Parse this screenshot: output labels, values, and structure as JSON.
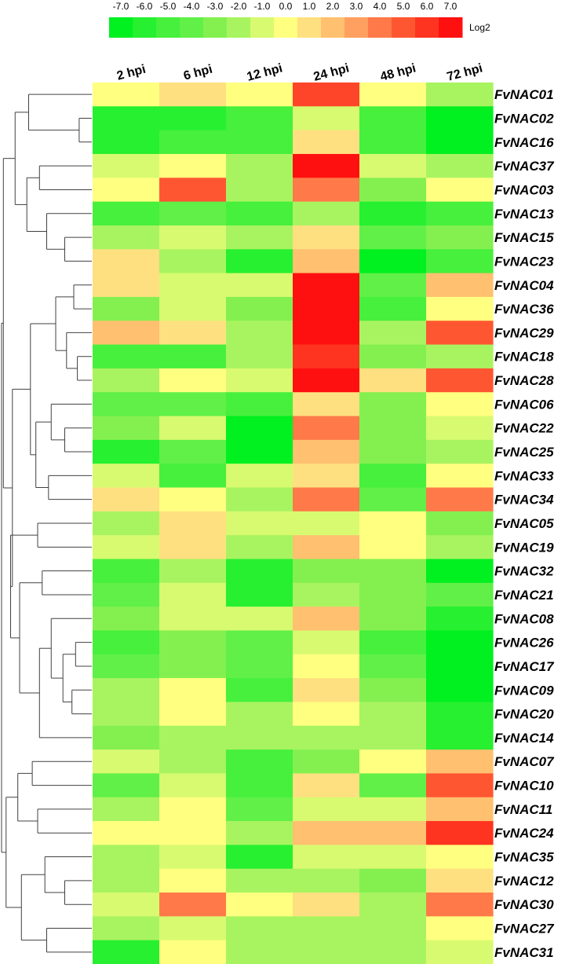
{
  "chart_data": {
    "type": "heatmap",
    "title": "",
    "xlabel": "",
    "ylabel": "",
    "columns": [
      "2 hpi",
      "6 hpi",
      "12 hpi",
      "24 hpi",
      "48 hpi",
      "72 hpi"
    ],
    "rows": [
      "FvNAC01",
      "FvNAC02",
      "FvNAC16",
      "FvNAC37",
      "FvNAC03",
      "FvNAC13",
      "FvNAC15",
      "FvNAC23",
      "FvNAC04",
      "FvNAC36",
      "FvNAC29",
      "FvNAC18",
      "FvNAC28",
      "FvNAC06",
      "FvNAC22",
      "FvNAC25",
      "FvNAC33",
      "FvNAC34",
      "FvNAC05",
      "FvNAC19",
      "FvNAC32",
      "FvNAC21",
      "FvNAC08",
      "FvNAC26",
      "FvNAC17",
      "FvNAC09",
      "FvNAC20",
      "FvNAC14",
      "FvNAC07",
      "FvNAC10",
      "FvNAC11",
      "FvNAC24",
      "FvNAC35",
      "FvNAC12",
      "FvNAC30",
      "FvNAC27",
      "FvNAC31"
    ],
    "values": [
      [
        0,
        1,
        0,
        5.5,
        0,
        -2
      ],
      [
        -6,
        -6,
        -5,
        -1,
        -5,
        -7
      ],
      [
        -6,
        -5,
        -5,
        1,
        -5,
        -7
      ],
      [
        -1,
        0,
        -2,
        7,
        -1,
        -2
      ],
      [
        0,
        5,
        -2,
        4,
        -3,
        0
      ],
      [
        -5,
        -4,
        -5,
        -2,
        -6,
        -5
      ],
      [
        -2,
        -1,
        -2,
        1,
        -4,
        -3
      ],
      [
        1,
        -2,
        -6,
        2,
        -7,
        -5
      ],
      [
        1,
        -1,
        -1,
        7,
        -4,
        2
      ],
      [
        -3,
        -1,
        -3,
        7,
        -5,
        0
      ],
      [
        2,
        1,
        -2,
        7,
        -2,
        5
      ],
      [
        -5,
        -5,
        -2,
        6,
        -3,
        -2
      ],
      [
        -2,
        0,
        -1,
        7,
        1,
        5
      ],
      [
        -4,
        -4,
        -5,
        1,
        -3,
        0
      ],
      [
        -3,
        -1,
        -7,
        4,
        -3,
        -1
      ],
      [
        -6,
        -4,
        -7,
        2,
        -3,
        -2
      ],
      [
        -1,
        -5,
        -1,
        1,
        -5,
        0
      ],
      [
        1,
        0,
        -2,
        4,
        -4,
        4
      ],
      [
        -2,
        1,
        -1,
        -1,
        0,
        -3
      ],
      [
        -1,
        1,
        -2,
        2,
        0,
        -2
      ],
      [
        -5,
        -2,
        -6,
        -3,
        -3,
        -7
      ],
      [
        -4,
        -1,
        -6,
        -2,
        -3,
        -4
      ],
      [
        -3,
        -1,
        -1,
        2,
        -3,
        -6
      ],
      [
        -5,
        -3,
        -4,
        -1,
        -5,
        -7
      ],
      [
        -4,
        -3,
        -4,
        0,
        -4,
        -7
      ],
      [
        -2,
        0,
        -5,
        1,
        -3,
        -7
      ],
      [
        -2,
        0,
        -2,
        0,
        -2,
        -6
      ],
      [
        -3,
        -2,
        -2,
        -2,
        -2,
        -6
      ],
      [
        -1,
        -2,
        -5,
        -3,
        0,
        2
      ],
      [
        -4,
        -1,
        -5,
        1,
        -4,
        5
      ],
      [
        -2,
        0,
        -4,
        -1,
        -1,
        2
      ],
      [
        0,
        0,
        -2,
        2,
        2,
        6
      ],
      [
        -2,
        -1,
        -6,
        -1,
        -1,
        0
      ],
      [
        -2,
        0,
        -2,
        -2,
        -3,
        1
      ],
      [
        -1,
        4,
        0,
        1,
        -2,
        4
      ],
      [
        -2,
        -1,
        -2,
        -2,
        -2,
        0
      ],
      [
        -6,
        0,
        -2,
        -2,
        -2,
        -1
      ]
    ],
    "scale": {
      "ticks": [
        "-7.0",
        "-6.0",
        "-5.0",
        "-4.0",
        "-3.0",
        "-2.0",
        "-1.0",
        "0.0",
        "1.0",
        "2.0",
        "3.0",
        "4.0",
        "5.0",
        "6.0",
        "7.0"
      ],
      "unit_label": "Log2",
      "min": -7,
      "max": 7,
      "colors": [
        "#00f020",
        "#26f030",
        "#46f03c",
        "#60f048",
        "#84f050",
        "#a8f460",
        "#d8fa70",
        "#ffff80",
        "#ffe080",
        "#ffc070",
        "#ffa060",
        "#ff7a48",
        "#ff5632",
        "#ff3420",
        "#ff1010"
      ]
    },
    "dendrogram": "row clustering tree (left)",
    "legend": "top"
  }
}
